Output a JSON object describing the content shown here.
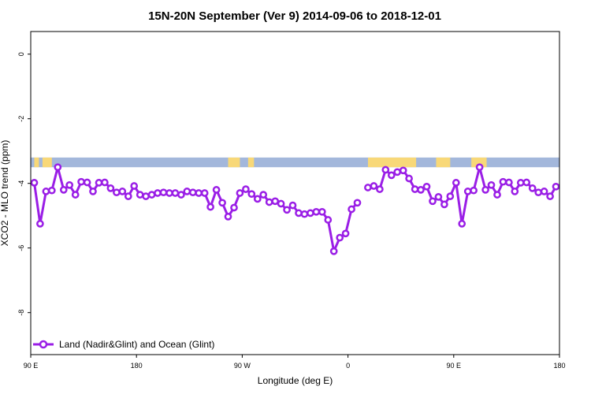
{
  "chart_data": {
    "type": "line",
    "title": "15N-20N September (Ver 9)   2014-09-06 to 2018-12-01",
    "xlabel": "Longitude (deg E)",
    "ylabel": "XCO2 - MLO trend (ppm)",
    "xlim": [
      90,
      540
    ],
    "ylim": [
      -9.3,
      0.7
    ],
    "xticks": [
      {
        "value": 90,
        "label": "90 E"
      },
      {
        "value": 180,
        "label": "180"
      },
      {
        "value": 270,
        "label": "90 W"
      },
      {
        "value": 360,
        "label": "0"
      },
      {
        "value": 450,
        "label": "90 E"
      },
      {
        "value": 540,
        "label": "180"
      }
    ],
    "yticks": [
      {
        "value": 0,
        "label": "0"
      },
      {
        "value": -2,
        "label": "-2"
      },
      {
        "value": -4,
        "label": "-4"
      },
      {
        "value": -6,
        "label": "-6"
      },
      {
        "value": -8,
        "label": "-8"
      }
    ],
    "grid": false,
    "legend_position": "bottom-left",
    "map_band": {
      "y_range": [
        -3.5,
        -3.2
      ],
      "ocean_color": "#a3b7db",
      "land_color": "#f8d878",
      "land_segments": [
        [
          93,
          97
        ],
        [
          100,
          108
        ],
        [
          258,
          268
        ],
        [
          275,
          280
        ],
        [
          377,
          418
        ],
        [
          435,
          447
        ],
        [
          465,
          478
        ]
      ]
    },
    "series": [
      {
        "name": "Land (Nadir&Glint) and Ocean (Glint)",
        "color": "#9a1ee6",
        "segments": [
          [
            [
              93,
              -3.98
            ],
            [
              98,
              -5.25
            ],
            [
              103,
              -4.25
            ],
            [
              108,
              -4.22
            ],
            [
              113,
              -3.5
            ],
            [
              118,
              -4.2
            ],
            [
              123,
              -4.05
            ],
            [
              128,
              -4.35
            ],
            [
              133,
              -3.95
            ],
            [
              138,
              -3.97
            ],
            [
              143,
              -4.25
            ],
            [
              148,
              -3.98
            ],
            [
              153,
              -3.97
            ],
            [
              158,
              -4.15
            ],
            [
              163,
              -4.28
            ],
            [
              168,
              -4.25
            ],
            [
              173,
              -4.4
            ],
            [
              178,
              -4.08
            ],
            [
              183,
              -4.35
            ],
            [
              188,
              -4.4
            ],
            [
              193,
              -4.35
            ],
            [
              198,
              -4.3
            ],
            [
              203,
              -4.28
            ],
            [
              208,
              -4.3
            ],
            [
              213,
              -4.3
            ],
            [
              218,
              -4.35
            ],
            [
              223,
              -4.25
            ],
            [
              228,
              -4.28
            ],
            [
              233,
              -4.3
            ],
            [
              238,
              -4.3
            ],
            [
              243,
              -4.73
            ],
            [
              248,
              -4.2
            ],
            [
              253,
              -4.6
            ],
            [
              258,
              -5.03
            ],
            [
              263,
              -4.75
            ],
            [
              268,
              -4.3
            ],
            [
              273,
              -4.18
            ],
            [
              278,
              -4.33
            ],
            [
              283,
              -4.48
            ],
            [
              288,
              -4.35
            ],
            [
              293,
              -4.58
            ],
            [
              298,
              -4.55
            ],
            [
              303,
              -4.63
            ],
            [
              308,
              -4.82
            ],
            [
              313,
              -4.68
            ],
            [
              318,
              -4.92
            ],
            [
              323,
              -4.95
            ],
            [
              328,
              -4.92
            ],
            [
              333,
              -4.88
            ],
            [
              338,
              -4.88
            ],
            [
              343,
              -5.13
            ],
            [
              348,
              -6.1
            ],
            [
              353,
              -5.68
            ],
            [
              358,
              -5.55
            ],
            [
              363,
              -4.8
            ],
            [
              368,
              -4.6
            ]
          ],
          [
            [
              377,
              -4.13
            ],
            [
              382,
              -4.08
            ],
            [
              387,
              -4.18
            ],
            [
              392,
              -3.58
            ],
            [
              397,
              -3.75
            ],
            [
              402,
              -3.65
            ],
            [
              407,
              -3.6
            ],
            [
              412,
              -3.85
            ],
            [
              417,
              -4.18
            ],
            [
              422,
              -4.2
            ],
            [
              427,
              -4.1
            ],
            [
              432,
              -4.55
            ],
            [
              437,
              -4.42
            ],
            [
              442,
              -4.65
            ],
            [
              447,
              -4.4
            ],
            [
              452,
              -3.98
            ],
            [
              457,
              -5.25
            ],
            [
              462,
              -4.25
            ],
            [
              467,
              -4.22
            ],
            [
              472,
              -3.5
            ],
            [
              477,
              -4.2
            ],
            [
              482,
              -4.05
            ],
            [
              487,
              -4.35
            ],
            [
              492,
              -3.95
            ],
            [
              497,
              -3.97
            ],
            [
              502,
              -4.25
            ],
            [
              507,
              -3.98
            ],
            [
              512,
              -3.97
            ],
            [
              517,
              -4.15
            ],
            [
              522,
              -4.28
            ],
            [
              527,
              -4.25
            ],
            [
              532,
              -4.4
            ],
            [
              537,
              -4.1
            ]
          ]
        ]
      }
    ]
  }
}
